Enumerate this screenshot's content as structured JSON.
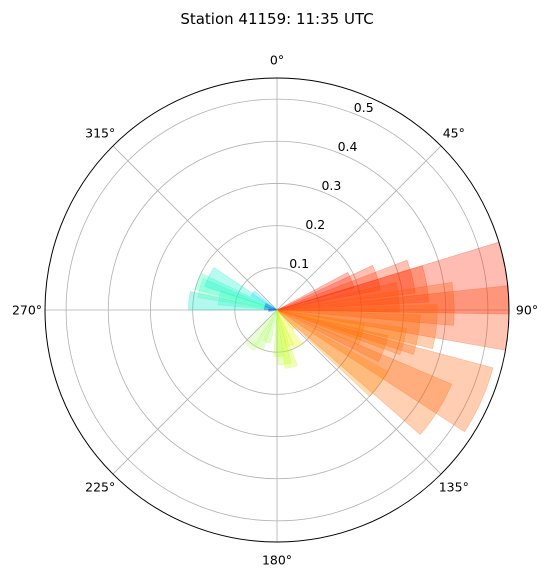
{
  "chart_data": {
    "type": "polar-bar",
    "title": "Station 41159: 11:35 UTC",
    "theta_direction": "clockwise",
    "theta_zero": "N",
    "theta_tick_labels": [
      "0°",
      "45°",
      "90°",
      "135°",
      "180°",
      "225°",
      "270°",
      "315°"
    ],
    "theta_ticks_deg": [
      0,
      45,
      90,
      135,
      180,
      225,
      270,
      315
    ],
    "r_ticks": [
      0.1,
      0.2,
      0.3,
      0.4,
      0.5
    ],
    "r_tick_labels": [
      "0.1",
      "0.2",
      "0.3",
      "0.4",
      "0.5"
    ],
    "r_max": 0.55,
    "r_label_angle_deg": 22.5,
    "grid": true,
    "colormap": "jet",
    "bar_alpha": 0.3,
    "bars": [
      {
        "theta_deg": 68,
        "width_deg": 12,
        "r": 0.19,
        "color": "#ff1f00"
      },
      {
        "theta_deg": 72,
        "width_deg": 14,
        "r": 0.25,
        "color": "#ff2a00"
      },
      {
        "theta_deg": 76,
        "width_deg": 14,
        "r": 0.33,
        "color": "#ff3500"
      },
      {
        "theta_deg": 80,
        "width_deg": 14,
        "r": 0.36,
        "color": "#ff4000"
      },
      {
        "theta_deg": 82,
        "width_deg": 18,
        "r": 0.55,
        "color": "#ff2200"
      },
      {
        "theta_deg": 84,
        "width_deg": 14,
        "r": 0.29,
        "color": "#ff4b00"
      },
      {
        "theta_deg": 88,
        "width_deg": 14,
        "r": 0.42,
        "color": "#ff5500"
      },
      {
        "theta_deg": 92,
        "width_deg": 16,
        "r": 0.55,
        "color": "#ff4000"
      },
      {
        "theta_deg": 96,
        "width_deg": 16,
        "r": 0.38,
        "color": "#ff6000"
      },
      {
        "theta_deg": 100,
        "width_deg": 16,
        "r": 0.34,
        "color": "#ff6a00"
      },
      {
        "theta_deg": 104,
        "width_deg": 12,
        "r": 0.31,
        "color": "#ff7500"
      },
      {
        "theta_deg": 106,
        "width_deg": 14,
        "r": 0.21,
        "color": "#ff7f00"
      },
      {
        "theta_deg": 110,
        "width_deg": 14,
        "r": 0.27,
        "color": "#ff6f00"
      },
      {
        "theta_deg": 114,
        "width_deg": 18,
        "r": 0.53,
        "color": "#ff5a00"
      },
      {
        "theta_deg": 122,
        "width_deg": 18,
        "r": 0.45,
        "color": "#ff6400"
      },
      {
        "theta_deg": 126,
        "width_deg": 14,
        "r": 0.3,
        "color": "#ff8a00"
      },
      {
        "theta_deg": 135,
        "width_deg": 12,
        "r": 0.06,
        "color": "#ffc400"
      },
      {
        "theta_deg": 150,
        "width_deg": 14,
        "r": 0.1,
        "color": "#e8f500"
      },
      {
        "theta_deg": 160,
        "width_deg": 12,
        "r": 0.09,
        "color": "#d4ff00"
      },
      {
        "theta_deg": 166,
        "width_deg": 12,
        "r": 0.14,
        "color": "#c8ff00"
      },
      {
        "theta_deg": 172,
        "width_deg": 14,
        "r": 0.13,
        "color": "#b8ff10"
      },
      {
        "theta_deg": 178,
        "width_deg": 12,
        "r": 0.11,
        "color": "#aaff20"
      },
      {
        "theta_deg": 198,
        "width_deg": 14,
        "r": 0.08,
        "color": "#9eff5a"
      },
      {
        "theta_deg": 206,
        "width_deg": 14,
        "r": 0.1,
        "color": "#a8ff60"
      },
      {
        "theta_deg": 216,
        "width_deg": 14,
        "r": 0.11,
        "color": "#b0ff70"
      },
      {
        "theta_deg": 276,
        "width_deg": 12,
        "r": 0.21,
        "color": "#00e8c0"
      },
      {
        "theta_deg": 282,
        "width_deg": 14,
        "r": 0.14,
        "color": "#20ffc8"
      },
      {
        "theta_deg": 286,
        "width_deg": 14,
        "r": 0.19,
        "color": "#40ffb0"
      },
      {
        "theta_deg": 290,
        "width_deg": 12,
        "r": 0.2,
        "color": "#30ffc0"
      },
      {
        "theta_deg": 296,
        "width_deg": 16,
        "r": 0.18,
        "color": "#10f0d0"
      },
      {
        "theta_deg": 304,
        "width_deg": 12,
        "r": 0.07,
        "color": "#00d8ff"
      },
      {
        "theta_deg": 278,
        "width_deg": 14,
        "r": 0.03,
        "color": "#0050ff"
      },
      {
        "theta_deg": 294,
        "width_deg": 14,
        "r": 0.03,
        "color": "#0030e0"
      },
      {
        "theta_deg": 270,
        "width_deg": 12,
        "r": 0.02,
        "color": "#0010b0"
      },
      {
        "theta_deg": 262,
        "width_deg": 12,
        "r": 0.02,
        "color": "#2090ff"
      }
    ]
  }
}
